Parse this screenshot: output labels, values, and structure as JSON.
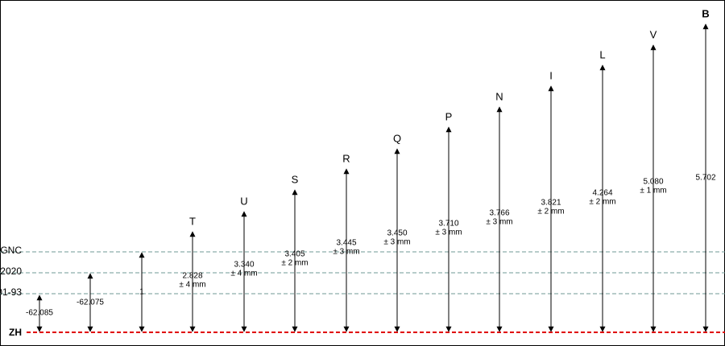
{
  "levels": [
    {
      "label": "GNC"
    },
    {
      "label": "2020"
    },
    {
      "label": "01-93"
    }
  ],
  "baseline": {
    "label": "ZH"
  },
  "arrows": [
    {
      "value": "-62.085"
    },
    {
      "value": "-62.075"
    },
    {
      "value": "1"
    },
    {
      "label": "T",
      "value": "2.828",
      "tolerance": "± 4 mm"
    },
    {
      "label": "U",
      "value": "3.340",
      "tolerance": "± 4 mm"
    },
    {
      "label": "S",
      "value": "3.405",
      "tolerance": "± 2 mm"
    },
    {
      "label": "R",
      "value": "3.445",
      "tolerance": "± 3 mm"
    },
    {
      "label": "Q",
      "value": "3.450",
      "tolerance": "± 3 mm"
    },
    {
      "label": "P",
      "value": "3.710",
      "tolerance": "± 3 mm"
    },
    {
      "label": "N",
      "value": "3.766",
      "tolerance": "± 3 mm"
    },
    {
      "label": "I",
      "value": "3.821",
      "tolerance": "± 2 mm"
    },
    {
      "label": "L",
      "value": "4.264",
      "tolerance": "± 2 mm"
    },
    {
      "label": "V",
      "value": "5.080",
      "tolerance": "± 1 mm"
    },
    {
      "label": "B",
      "value": "5.702"
    }
  ]
}
